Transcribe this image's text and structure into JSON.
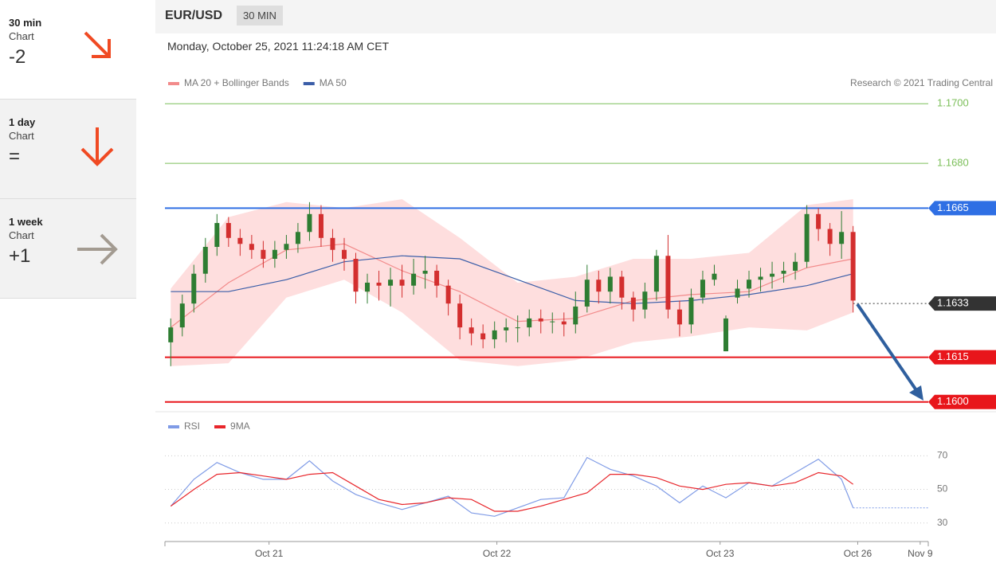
{
  "sidebar": [
    {
      "title": "30 min",
      "subtitle": "Chart",
      "value": "-2"
    },
    {
      "title": "1 day",
      "subtitle": "Chart",
      "value": "="
    },
    {
      "title": "1 week",
      "subtitle": "Chart",
      "value": "+1"
    }
  ],
  "header": {
    "pair": "EUR/USD",
    "timeframe": "30 MIN",
    "timestamp": "Monday, October 25, 2021 11:24:18 AM CET",
    "credit": "Research © 2021 Trading Central"
  },
  "chart_data": [
    {
      "type": "candlestick",
      "up_color": "#2e7d32",
      "down_color": "#d32f2f",
      "xlim": [
        -0.5,
        65.5
      ],
      "ylim": [
        1.1597,
        1.1703
      ],
      "open": [
        1.162,
        1.1625,
        1.1633,
        1.1643,
        1.1652,
        1.166,
        1.1655,
        1.1653,
        1.1651,
        1.1648,
        1.1651,
        1.1653,
        1.1657,
        1.1663,
        1.1655,
        1.1651,
        1.1648,
        1.1637,
        1.164,
        1.1639,
        1.1641,
        1.1639,
        1.1643,
        1.1644,
        1.1639,
        1.1633,
        1.1625,
        1.1623,
        1.1621,
        1.1624,
        1.1625,
        1.1625,
        1.1628,
        1.1627,
        1.1627,
        1.1626,
        1.1632,
        1.1641,
        1.1637,
        1.1642,
        1.1635,
        1.1631,
        1.1637,
        1.1649,
        1.1631,
        1.1626,
        1.1635,
        1.1641,
        1.1617,
        1.1635,
        1.1638,
        1.1641,
        1.1642,
        1.1643,
        1.1644,
        1.1647,
        1.1663,
        1.1658,
        1.1653,
        1.1657
      ],
      "high": [
        1.1628,
        1.1636,
        1.1646,
        1.1655,
        1.1663,
        1.1662,
        1.1658,
        1.1656,
        1.1654,
        1.1654,
        1.1656,
        1.166,
        1.1667,
        1.1666,
        1.1658,
        1.1655,
        1.165,
        1.1643,
        1.1644,
        1.1645,
        1.1646,
        1.1648,
        1.1649,
        1.1646,
        1.1641,
        1.1636,
        1.1628,
        1.1626,
        1.1627,
        1.1628,
        1.1629,
        1.1631,
        1.1631,
        1.163,
        1.163,
        1.1637,
        1.1646,
        1.1644,
        1.1645,
        1.1644,
        1.1637,
        1.164,
        1.1651,
        1.1656,
        1.1634,
        1.1638,
        1.1644,
        1.1646,
        1.1629,
        1.1641,
        1.1644,
        1.1645,
        1.1647,
        1.1647,
        1.165,
        1.1666,
        1.1665,
        1.166,
        1.1664,
        1.1659
      ],
      "low": [
        1.1612,
        1.1622,
        1.163,
        1.164,
        1.1649,
        1.1652,
        1.1649,
        1.1648,
        1.1645,
        1.1645,
        1.1648,
        1.165,
        1.1654,
        1.1652,
        1.1647,
        1.1644,
        1.1633,
        1.1633,
        1.1634,
        1.1632,
        1.1635,
        1.1636,
        1.1638,
        1.1635,
        1.1629,
        1.1621,
        1.1619,
        1.1618,
        1.1618,
        1.162,
        1.162,
        1.1622,
        1.1623,
        1.1623,
        1.1622,
        1.1623,
        1.163,
        1.1633,
        1.1633,
        1.1631,
        1.1627,
        1.1628,
        1.1634,
        1.1628,
        1.1622,
        1.1623,
        1.1633,
        1.1639,
        1.1617,
        1.1633,
        1.1635,
        1.1637,
        1.1638,
        1.164,
        1.1641,
        1.1645,
        1.1654,
        1.1649,
        1.1648,
        1.163
      ],
      "close": [
        1.1625,
        1.1633,
        1.1643,
        1.1652,
        1.166,
        1.1655,
        1.1653,
        1.1651,
        1.1648,
        1.1651,
        1.1653,
        1.1657,
        1.1663,
        1.1655,
        1.1651,
        1.1648,
        1.1637,
        1.164,
        1.1639,
        1.1641,
        1.1639,
        1.1643,
        1.1644,
        1.1639,
        1.1633,
        1.1625,
        1.1623,
        1.1621,
        1.1624,
        1.1625,
        1.1625,
        1.1628,
        1.1627,
        1.1627,
        1.1626,
        1.1632,
        1.1641,
        1.1637,
        1.1642,
        1.1635,
        1.1631,
        1.1637,
        1.1649,
        1.1631,
        1.1626,
        1.1635,
        1.1641,
        1.1643,
        1.1628,
        1.1638,
        1.1641,
        1.1642,
        1.1643,
        1.1644,
        1.1647,
        1.1663,
        1.1658,
        1.1653,
        1.1657,
        1.1634
      ],
      "series": [
        {
          "name": "MA 20 + Bollinger Bands",
          "color": "#f28b8b",
          "band_color": "#fdd3d3",
          "x": [
            0,
            5,
            10,
            15,
            20,
            25,
            30,
            35,
            40,
            45,
            50,
            55,
            59
          ],
          "values": [
            1.1625,
            1.164,
            1.1651,
            1.1653,
            1.1644,
            1.1637,
            1.1627,
            1.1628,
            1.1634,
            1.1636,
            1.1637,
            1.1645,
            1.1648
          ],
          "upper": [
            1.1638,
            1.1662,
            1.1667,
            1.1665,
            1.1668,
            1.1655,
            1.164,
            1.1642,
            1.1648,
            1.1648,
            1.165,
            1.1666,
            1.1668
          ],
          "lower": [
            1.1612,
            1.1613,
            1.1635,
            1.1641,
            1.163,
            1.1614,
            1.1612,
            1.1614,
            1.162,
            1.1622,
            1.1625,
            1.1624,
            1.163
          ]
        },
        {
          "name": "MA 50",
          "color": "#3b5ea8",
          "x": [
            0,
            5,
            10,
            15,
            20,
            25,
            30,
            35,
            40,
            45,
            50,
            55,
            59
          ],
          "values": [
            1.1637,
            1.1637,
            1.1641,
            1.1647,
            1.1649,
            1.1648,
            1.1641,
            1.1634,
            1.1633,
            1.1634,
            1.1636,
            1.1639,
            1.1643
          ]
        }
      ],
      "levels": [
        {
          "value": 1.17,
          "label": "1.1700",
          "color": "#7cbf5a",
          "boxed": false,
          "dotted": false
        },
        {
          "value": 1.168,
          "label": "1.1680",
          "color": "#7cbf5a",
          "boxed": false,
          "dotted": false
        },
        {
          "value": 1.1665,
          "label": "1.1665",
          "color": "#2f6fe4",
          "boxed": true,
          "dotted": false
        },
        {
          "value": 1.1633,
          "label": "1.1633",
          "color": "#333333",
          "boxed": true,
          "dotted": true
        },
        {
          "value": 1.1615,
          "label": "1.1615",
          "color": "#e8161b",
          "boxed": true,
          "dotted": false
        },
        {
          "value": 1.16,
          "label": "1.1600",
          "color": "#e8161b",
          "boxed": true,
          "dotted": false
        }
      ]
    },
    {
      "type": "line",
      "xlim": [
        -0.5,
        65.5
      ],
      "ylim": [
        18,
        83
      ],
      "yticks": [
        30,
        50,
        70
      ],
      "xticks": [
        {
          "value": 8.5,
          "label": "Oct 21"
        },
        {
          "value": 28.2,
          "label": "Oct 22"
        },
        {
          "value": 47.5,
          "label": "Oct 23"
        },
        {
          "value": 59.4,
          "label": "Oct 26"
        },
        {
          "value": 64.8,
          "label": "Nov 9"
        }
      ],
      "x": [
        0,
        2,
        4,
        6,
        8,
        10,
        12,
        14,
        16,
        18,
        20,
        22,
        24,
        26,
        28,
        30,
        32,
        34,
        36,
        38,
        40,
        42,
        44,
        46,
        48,
        50,
        52,
        54,
        56,
        58,
        59
      ],
      "series": [
        {
          "name": "RSI",
          "color": "#7f9be6",
          "values": [
            40,
            56,
            66,
            60,
            56,
            56,
            67,
            55,
            47,
            42,
            38,
            42,
            46,
            36,
            34,
            39,
            44,
            45,
            69,
            62,
            58,
            52,
            42,
            52,
            45,
            54,
            52,
            60,
            68,
            56,
            39
          ]
        },
        {
          "name": "9MA",
          "color": "#e8262b",
          "values": [
            40,
            50,
            59,
            60,
            58,
            56,
            59,
            60,
            52,
            44,
            41,
            42,
            45,
            44,
            37,
            37,
            40,
            44,
            48,
            59,
            59,
            57,
            52,
            50,
            53,
            54,
            52,
            54,
            60,
            58,
            53
          ]
        }
      ]
    }
  ]
}
